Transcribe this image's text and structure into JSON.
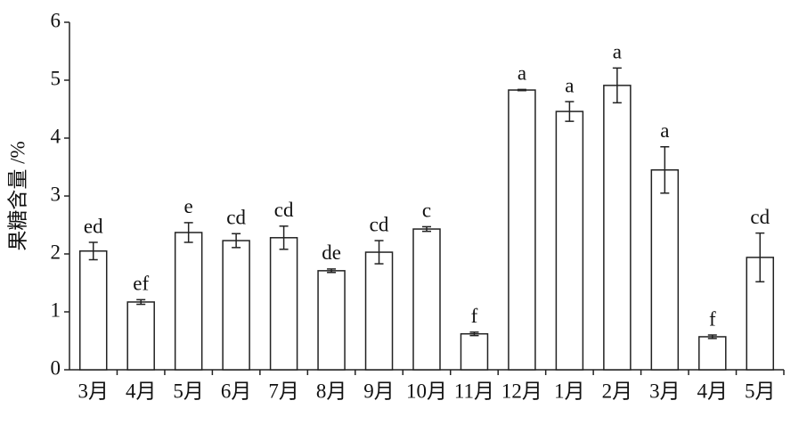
{
  "chart_data": {
    "type": "bar",
    "y_label": "果糖含量 /%",
    "categories": [
      "3月",
      "4月",
      "5月",
      "6月",
      "7月",
      "8月",
      "9月",
      "10月",
      "11月",
      "12月",
      "1月",
      "2月",
      "3月",
      "4月",
      "5月"
    ],
    "values": [
      2.05,
      1.17,
      2.37,
      2.23,
      2.28,
      1.71,
      2.03,
      2.43,
      0.62,
      4.83,
      4.46,
      4.91,
      3.45,
      0.57,
      1.94
    ],
    "errors": [
      0.15,
      0.04,
      0.17,
      0.12,
      0.2,
      0.03,
      0.2,
      0.04,
      0.03,
      0.01,
      0.17,
      0.3,
      0.4,
      0.03,
      0.42
    ],
    "letters": [
      "ed",
      "ef",
      "e",
      "cd",
      "cd",
      "de",
      "cd",
      "c",
      "f",
      "a",
      "a",
      "a",
      "a",
      "f",
      "cd"
    ],
    "color": "#ffffff",
    "ylim": [
      0,
      6
    ],
    "yticks": [
      0,
      1,
      2,
      3,
      4,
      5,
      6
    ],
    "grid": false
  }
}
